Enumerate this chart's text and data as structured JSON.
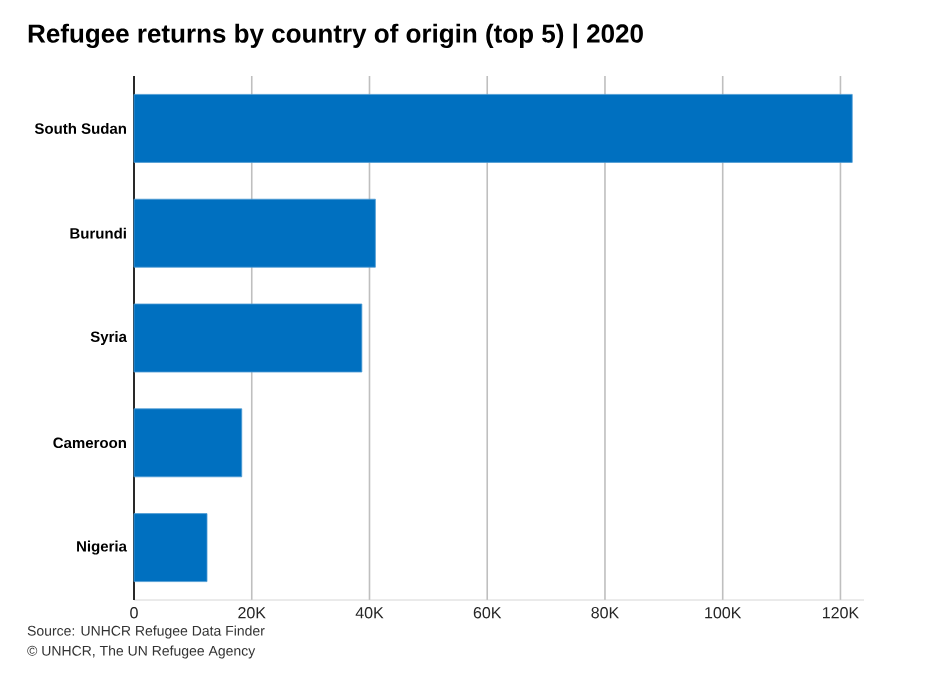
{
  "chart_data": {
    "type": "bar",
    "orientation": "horizontal",
    "title": "Refugee returns by country of origin (top 5) | 2020",
    "categories": [
      "South Sudan",
      "Burundi",
      "Syria",
      "Cameroon",
      "Nigeria"
    ],
    "values": [
      122000,
      41000,
      38700,
      18300,
      12400
    ],
    "color": "#0070c0",
    "xlim": [
      0,
      124000
    ],
    "xticks": [
      0,
      {
        "value": 20000,
        "label": "20K"
      },
      {
        "value": 40000,
        "label": "40K"
      },
      {
        "value": 60000,
        "label": "60K"
      },
      {
        "value": 80000,
        "label": "80K"
      },
      {
        "value": 100000,
        "label": "100K"
      },
      {
        "value": 120000,
        "label": "120K"
      }
    ],
    "grid": "x",
    "annotations": [
      "Source: UNHCR Refugee Data Finder",
      "© UNHCR, The UN Refugee Agency"
    ]
  }
}
